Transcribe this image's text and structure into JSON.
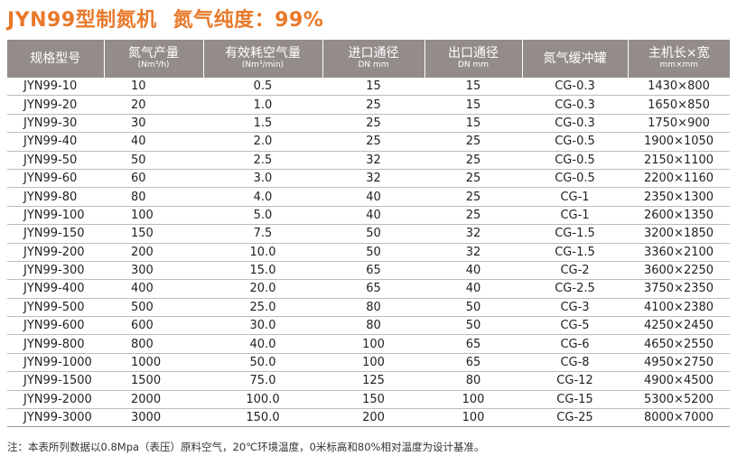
{
  "title": {
    "main": "JYN99型制氮机",
    "purity": "氮气纯度：99%"
  },
  "table": {
    "headers": [
      {
        "main": "规格型号",
        "unit": ""
      },
      {
        "main": "氮气产量",
        "unit": "(Nm³/h)"
      },
      {
        "main": "有效耗空气量",
        "unit": "(Nm³/min)"
      },
      {
        "main": "进口通径",
        "unit": "DN mm"
      },
      {
        "main": "出口通径",
        "unit": "DN mm"
      },
      {
        "main": "氮气缓冲罐",
        "unit": ""
      },
      {
        "main": "主机长×宽",
        "unit": "mm×mm"
      }
    ],
    "rows": [
      [
        "JYN99-10",
        "10",
        "0.5",
        "15",
        "15",
        "CG-0.3",
        "1430×800"
      ],
      [
        "JYN99-20",
        "20",
        "1.0",
        "25",
        "15",
        "CG-0.3",
        "1650×850"
      ],
      [
        "JYN99-30",
        "30",
        "1.5",
        "25",
        "15",
        "CG-0.3",
        "1750×900"
      ],
      [
        "JYN99-40",
        "40",
        "2.0",
        "25",
        "25",
        "CG-0.5",
        "1900×1050"
      ],
      [
        "JYN99-50",
        "50",
        "2.5",
        "32",
        "25",
        "CG-0.5",
        "2150×1100"
      ],
      [
        "JYN99-60",
        "60",
        "3.0",
        "32",
        "25",
        "CG-0.5",
        "2200×1160"
      ],
      [
        "JYN99-80",
        "80",
        "4.0",
        "40",
        "25",
        "CG-1",
        "2350×1300"
      ],
      [
        "JYN99-100",
        "100",
        "5.0",
        "40",
        "25",
        "CG-1",
        "2600×1350"
      ],
      [
        "JYN99-150",
        "150",
        "7.5",
        "50",
        "32",
        "CG-1.5",
        "3200×1850"
      ],
      [
        "JYN99-200",
        "200",
        "10.0",
        "50",
        "32",
        "CG-1.5",
        "3360×2100"
      ],
      [
        "JYN99-300",
        "300",
        "15.0",
        "65",
        "40",
        "CG-2",
        "3600×2250"
      ],
      [
        "JYN99-400",
        "400",
        "20.0",
        "65",
        "40",
        "CG-2.5",
        "3750×2350"
      ],
      [
        "JYN99-500",
        "500",
        "25.0",
        "80",
        "50",
        "CG-3",
        "4100×2380"
      ],
      [
        "JYN99-600",
        "600",
        "30.0",
        "80",
        "50",
        "CG-5",
        "4250×2450"
      ],
      [
        "JYN99-800",
        "800",
        "40.0",
        "100",
        "65",
        "CG-6",
        "4650×2550"
      ],
      [
        "JYN99-1000",
        "1000",
        "50.0",
        "100",
        "65",
        "CG-8",
        "4950×2750"
      ],
      [
        "JYN99-1500",
        "1500",
        "75.0",
        "125",
        "80",
        "CG-12",
        "4900×4500"
      ],
      [
        "JYN99-2000",
        "2000",
        "100.0",
        "150",
        "100",
        "CG-15",
        "5300×5200"
      ],
      [
        "JYN99-3000",
        "3000",
        "150.0",
        "200",
        "100",
        "CG-25",
        "8000×7000"
      ]
    ]
  },
  "note": "注：本表所列数据以0.8Mpa（表压）原料空气，20℃环境温度，0米标高和80%相对温度为设计基准。",
  "colors": {
    "title": "#e8792a",
    "header_bg": "#938c8a",
    "row_rule": "#bcbcbc"
  }
}
